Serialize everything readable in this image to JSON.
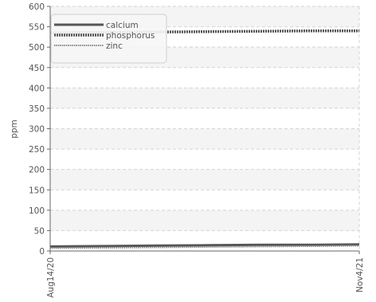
{
  "chart_data": {
    "type": "line",
    "ylabel": "ppm",
    "xlabel": "",
    "ylim": [
      0,
      600
    ],
    "yticks": [
      "0",
      "50",
      "100",
      "150",
      "200",
      "250",
      "300",
      "350",
      "400",
      "450",
      "500",
      "550",
      "600"
    ],
    "x_tick_labels": [
      "Aug14/20",
      "Nov4/21"
    ],
    "x_range": [
      "2020-08-14",
      "2021-11-04"
    ],
    "grid": true,
    "legend_position": "top-left",
    "series": [
      {
        "name": "calcium",
        "color": "#555555",
        "style": "solid",
        "x": [
          "2020-08-14",
          "2020-11-01",
          "2021-01-15",
          "2021-04-01",
          "2021-06-15",
          "2021-09-01",
          "2021-11-04"
        ],
        "values": [
          11,
          12,
          13,
          14,
          15,
          15,
          16
        ]
      },
      {
        "name": "phosphorus",
        "color": "#555555",
        "style": "dotted",
        "x": [
          "2020-08-14",
          "2020-11-01",
          "2021-01-15",
          "2021-04-01",
          "2021-06-15",
          "2021-09-01",
          "2021-11-04"
        ],
        "values": [
          535,
          536,
          537,
          538,
          539,
          540,
          540
        ]
      },
      {
        "name": "zinc",
        "color": "#888888",
        "style": "dashed",
        "x": [
          "2020-08-14",
          "2020-11-01",
          "2021-01-15",
          "2021-04-01",
          "2021-06-15",
          "2021-09-01",
          "2021-11-04"
        ],
        "values": [
          7,
          8,
          9,
          10,
          11,
          12,
          13
        ]
      }
    ]
  }
}
